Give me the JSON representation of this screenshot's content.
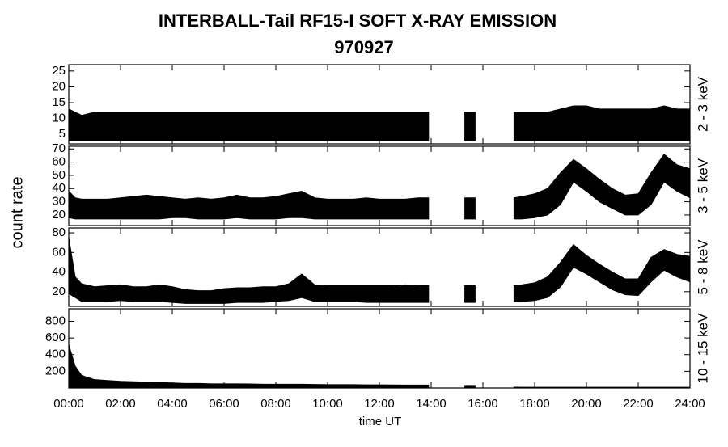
{
  "title": "INTERBALL-Tail RF15-I SOFT X-RAY EMISSION",
  "subtitle": "970927",
  "y_label": "count rate",
  "x_label": "time UT",
  "xlim": [
    0,
    24
  ],
  "xticks": [
    {
      "value": 0,
      "label": "00:00"
    },
    {
      "value": 2,
      "label": "02:00"
    },
    {
      "value": 4,
      "label": "04:00"
    },
    {
      "value": 6,
      "label": "06:00"
    },
    {
      "value": 8,
      "label": "08:00"
    },
    {
      "value": 10,
      "label": "10:00"
    },
    {
      "value": 12,
      "label": "12:00"
    },
    {
      "value": 14,
      "label": "14:00"
    },
    {
      "value": 16,
      "label": "16:00"
    },
    {
      "value": 18,
      "label": "18:00"
    },
    {
      "value": 20,
      "label": "20:00"
    },
    {
      "value": 22,
      "label": "22:00"
    },
    {
      "value": 24,
      "label": "24:00"
    }
  ],
  "x": [
    0,
    0.25,
    0.5,
    1,
    1.5,
    2,
    2.5,
    3,
    3.5,
    4,
    4.5,
    5,
    5.5,
    6,
    6.5,
    7,
    7.5,
    8,
    8.5,
    9,
    9.5,
    10,
    10.5,
    11,
    11.5,
    12,
    12.5,
    13,
    13.5,
    13.9,
    14.5,
    15.3,
    15.7,
    16.5,
    17.2,
    17.5,
    18,
    18.5,
    19,
    19.5,
    20,
    20.5,
    21,
    21.5,
    22,
    22.5,
    23,
    23.5,
    24
  ],
  "chart_data": [
    {
      "type": "band",
      "label": "2 - 3 keV",
      "color": "#000000",
      "ylim": [
        2,
        27
      ],
      "yticks": [
        5,
        10,
        15,
        20,
        25
      ],
      "low": [
        3,
        3,
        3,
        3,
        3,
        3,
        3,
        3,
        3,
        3,
        3,
        3,
        3,
        3,
        3,
        3,
        3,
        3,
        3,
        3,
        3,
        3,
        3,
        3,
        3,
        3,
        3,
        3,
        3,
        3,
        null,
        3,
        3,
        null,
        3,
        3,
        3,
        3,
        3,
        3,
        3,
        3,
        3,
        3,
        3,
        3,
        3,
        3,
        3
      ],
      "high": [
        13,
        12,
        11,
        12,
        12,
        12,
        12,
        12,
        12,
        12,
        12,
        12,
        12,
        12,
        12,
        12,
        12,
        12,
        12,
        12,
        12,
        12,
        12,
        12,
        12,
        12,
        12,
        12,
        12,
        12,
        null,
        12,
        12,
        null,
        12,
        12,
        12,
        12,
        13,
        14,
        14,
        13,
        13,
        13,
        13,
        13,
        14,
        13,
        13
      ]
    },
    {
      "type": "band",
      "label": "3 - 5 keV",
      "color": "#000000",
      "ylim": [
        12,
        72
      ],
      "yticks": [
        20,
        30,
        40,
        50,
        60,
        70
      ],
      "low": [
        18,
        17,
        17,
        17,
        17,
        17,
        17,
        17,
        17,
        18,
        18,
        17,
        17,
        17,
        18,
        17,
        17,
        17,
        18,
        18,
        17,
        17,
        17,
        17,
        17,
        17,
        17,
        17,
        17,
        17,
        null,
        17,
        17,
        null,
        17,
        17,
        18,
        20,
        28,
        45,
        38,
        30,
        25,
        20,
        20,
        28,
        45,
        38,
        33
      ],
      "high": [
        38,
        33,
        32,
        32,
        32,
        33,
        34,
        35,
        34,
        33,
        32,
        33,
        32,
        33,
        35,
        33,
        33,
        34,
        36,
        38,
        33,
        32,
        32,
        32,
        33,
        32,
        32,
        32,
        33,
        33,
        null,
        33,
        33,
        null,
        33,
        34,
        36,
        40,
        52,
        62,
        55,
        47,
        40,
        35,
        36,
        52,
        66,
        58,
        55
      ]
    },
    {
      "type": "band",
      "label": "5 - 8 keV",
      "color": "#000000",
      "ylim": [
        5,
        85
      ],
      "yticks": [
        20,
        40,
        60,
        80
      ],
      "low": [
        18,
        14,
        10,
        10,
        10,
        11,
        10,
        10,
        10,
        9,
        8,
        8,
        8,
        8,
        9,
        9,
        9,
        10,
        11,
        14,
        10,
        10,
        10,
        10,
        9,
        9,
        9,
        9,
        9,
        9,
        null,
        9,
        9,
        null,
        10,
        10,
        11,
        14,
        25,
        45,
        38,
        30,
        22,
        17,
        16,
        30,
        42,
        35,
        30
      ],
      "high": [
        75,
        35,
        28,
        25,
        26,
        27,
        25,
        25,
        27,
        25,
        22,
        21,
        21,
        23,
        24,
        24,
        25,
        25,
        28,
        38,
        27,
        26,
        26,
        26,
        26,
        26,
        26,
        27,
        26,
        26,
        null,
        26,
        26,
        null,
        26,
        27,
        29,
        35,
        50,
        68,
        57,
        48,
        40,
        33,
        33,
        55,
        63,
        58,
        56
      ]
    },
    {
      "type": "band",
      "label": "10 - 15 keV",
      "color": "#000000",
      "ylim": [
        0,
        950
      ],
      "yticks": [
        200,
        400,
        600,
        800
      ],
      "low": [
        0,
        0,
        0,
        0,
        0,
        0,
        0,
        0,
        0,
        0,
        0,
        0,
        0,
        0,
        0,
        0,
        0,
        0,
        0,
        0,
        0,
        0,
        0,
        0,
        0,
        0,
        0,
        0,
        0,
        0,
        null,
        0,
        0,
        null,
        0,
        0,
        0,
        0,
        0,
        0,
        0,
        0,
        0,
        0,
        0,
        0,
        0,
        0,
        0
      ],
      "high": [
        520,
        260,
        150,
        100,
        90,
        80,
        75,
        70,
        65,
        60,
        55,
        55,
        50,
        50,
        50,
        48,
        45,
        45,
        45,
        45,
        42,
        40,
        40,
        40,
        38,
        38,
        36,
        35,
        35,
        35,
        null,
        30,
        30,
        null,
        10,
        8,
        8,
        8,
        8,
        8,
        8,
        8,
        8,
        8,
        8,
        8,
        8,
        8,
        8
      ]
    }
  ]
}
